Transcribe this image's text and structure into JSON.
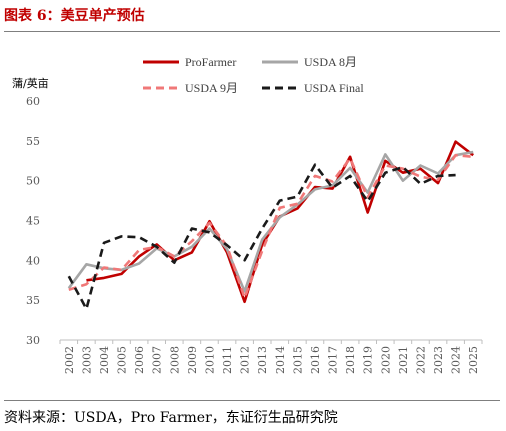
{
  "header": {
    "title": "图表 6：美豆单产预估"
  },
  "footer": {
    "source": "资料来源：USDA，Pro Farmer，东证衍生品研究院"
  },
  "chart_data": {
    "type": "line",
    "ylabel": "蒲/英亩",
    "ylim": [
      30,
      60
    ],
    "yticks": [
      30,
      35,
      40,
      45,
      50,
      55,
      60
    ],
    "grid": false,
    "legend_position": "top",
    "categories": [
      "2002",
      "2003",
      "2004",
      "2005",
      "2006",
      "2007",
      "2008",
      "2009",
      "2010",
      "2011",
      "2012",
      "2013",
      "2014",
      "2015",
      "2016",
      "2017",
      "2018",
      "2019",
      "2020",
      "2021",
      "2022",
      "2023",
      "2024",
      "2025"
    ],
    "series": [
      {
        "name": "ProFarmer",
        "color": "#c00000",
        "style": "solid",
        "values": [
          null,
          37.5,
          37.8,
          38.3,
          40.5,
          42.0,
          40.0,
          41.0,
          44.9,
          41.0,
          34.8,
          42.0,
          45.5,
          46.5,
          49.2,
          49.0,
          53.0,
          46.0,
          52.5,
          51.0,
          51.5,
          49.7,
          54.9,
          53.2
        ]
      },
      {
        "name": "USDA 8月",
        "color": "#a6a6a6",
        "style": "solid",
        "values": [
          36.5,
          39.5,
          39.0,
          38.8,
          39.6,
          41.5,
          40.5,
          41.7,
          44.0,
          41.4,
          36.1,
          42.6,
          45.4,
          47.0,
          48.9,
          49.4,
          51.6,
          48.5,
          53.3,
          50.0,
          51.9,
          50.9,
          53.2,
          53.6
        ]
      },
      {
        "name": "USDA 9月",
        "color": "#f07878",
        "style": "dashed",
        "values": [
          36.3,
          37.0,
          39.1,
          38.8,
          41.3,
          41.7,
          40.5,
          42.4,
          44.7,
          41.8,
          35.3,
          41.2,
          46.6,
          47.1,
          50.6,
          49.9,
          52.8,
          47.9,
          51.9,
          51.5,
          50.5,
          50.1,
          53.2,
          53.0
        ]
      },
      {
        "name": "USDA Final",
        "color": "#1a1a1a",
        "style": "dashed",
        "values": [
          38.0,
          33.9,
          42.2,
          43.0,
          42.9,
          41.7,
          39.7,
          44.0,
          43.5,
          41.9,
          40.0,
          44.0,
          47.5,
          48.0,
          52.0,
          49.1,
          50.6,
          47.4,
          51.0,
          51.7,
          49.6,
          50.6,
          50.7,
          null
        ]
      }
    ]
  }
}
